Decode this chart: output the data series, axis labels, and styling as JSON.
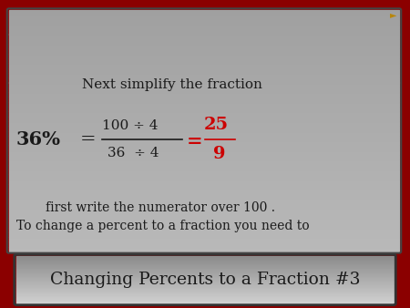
{
  "title": "Changing Percents to a Fraction #3",
  "bg_color": "#8B0000",
  "title_text_color": "#1a1a1a",
  "body_text_color": "#1a1a1a",
  "red_text_color": "#CC0000",
  "line1": "To change a percent to a fraction you need to",
  "line2": "first write the numerator over 100 .",
  "percent_label": "36%",
  "equals1": "=",
  "numerator1": "36  ÷ 4",
  "denominator1": "100 ÷ 4",
  "equals2": "=",
  "numerator2": "9",
  "denominator2": "25",
  "next_line": "Next simplify the fraction",
  "speaker_color": "#B8860B",
  "fig_w": 4.5,
  "fig_h": 3.38,
  "dpi": 100
}
